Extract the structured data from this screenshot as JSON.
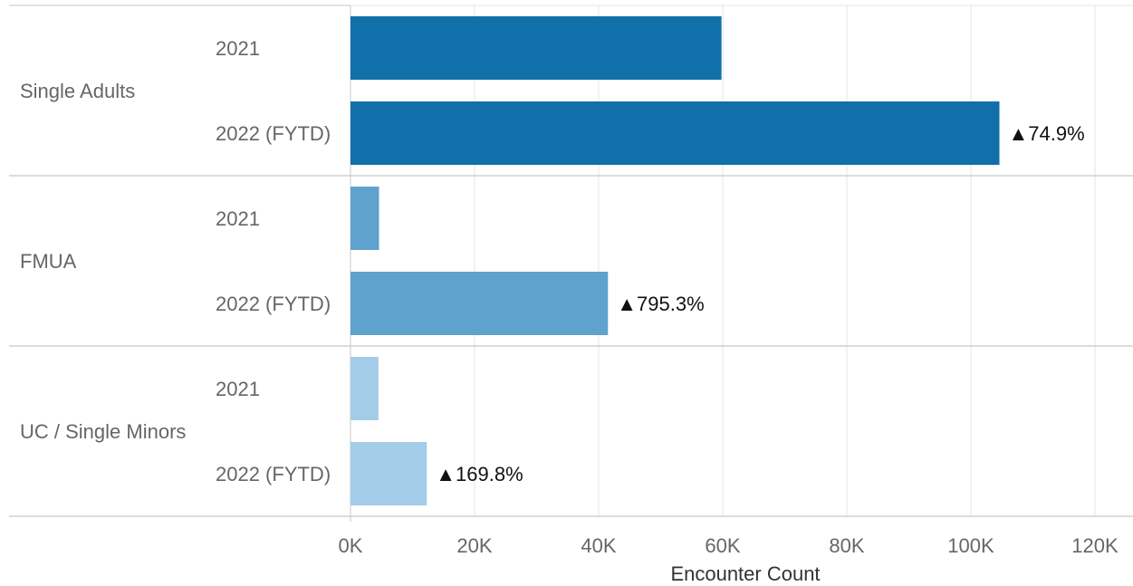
{
  "chart_data": {
    "type": "bar",
    "orientation": "horizontal",
    "xlabel": "Encounter Count",
    "xlim": [
      0,
      125000
    ],
    "xticks": [
      {
        "value": 0,
        "label": "0K"
      },
      {
        "value": 20000,
        "label": "20K"
      },
      {
        "value": 40000,
        "label": "40K"
      },
      {
        "value": 60000,
        "label": "60K"
      },
      {
        "value": 80000,
        "label": "80K"
      },
      {
        "value": 100000,
        "label": "100K"
      },
      {
        "value": 120000,
        "label": "120K"
      }
    ],
    "grid": true,
    "groups": [
      {
        "name": "Single Adults",
        "color": "#1170aa",
        "bars": [
          {
            "label": "2021",
            "value": 59800,
            "change": ""
          },
          {
            "label": "2022 (FYTD)",
            "value": 104600,
            "change": "▲74.9%"
          }
        ]
      },
      {
        "name": "FMUA",
        "color": "#5fa2ce",
        "bars": [
          {
            "label": "2021",
            "value": 4600,
            "change": ""
          },
          {
            "label": "2022 (FYTD)",
            "value": 41500,
            "change": "▲795.3%"
          }
        ]
      },
      {
        "name": "UC / Single Minors",
        "color": "#a3cce9",
        "bars": [
          {
            "label": "2021",
            "value": 4500,
            "change": ""
          },
          {
            "label": "2022 (FYTD)",
            "value": 12300,
            "change": "▲169.8%"
          }
        ]
      }
    ]
  }
}
